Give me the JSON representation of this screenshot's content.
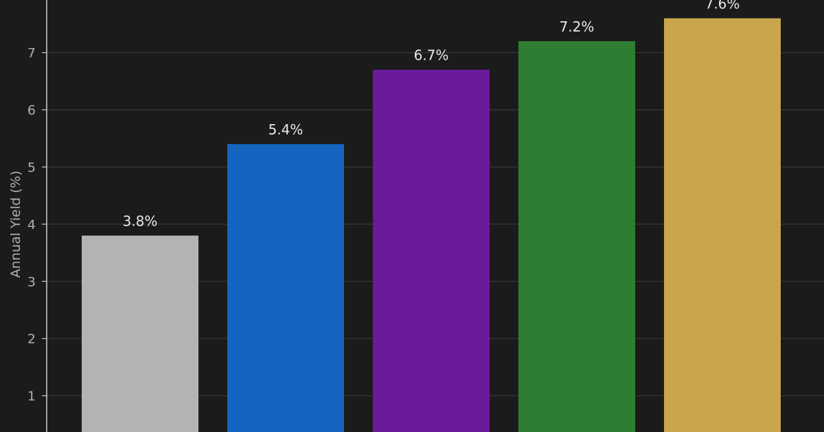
{
  "chart_data": {
    "type": "bar",
    "categories": [
      "",
      "",
      "",
      "",
      ""
    ],
    "values": [
      3.8,
      5.4,
      6.7,
      7.2,
      7.6
    ],
    "value_labels": [
      "3.8%",
      "5.4%",
      "6.7%",
      "7.2%",
      "7.6%"
    ],
    "colors": [
      "#b3b3b3",
      "#1565c0",
      "#6a1b9a",
      "#2e7d32",
      "#c9a64b"
    ],
    "ylabel": "Annual Yield (%)",
    "yticks": [
      1,
      2,
      3,
      4,
      5,
      6,
      7
    ],
    "ytick_labels": [
      "1",
      "2",
      "3",
      "4",
      "5",
      "6",
      "7"
    ],
    "grid": true
  }
}
